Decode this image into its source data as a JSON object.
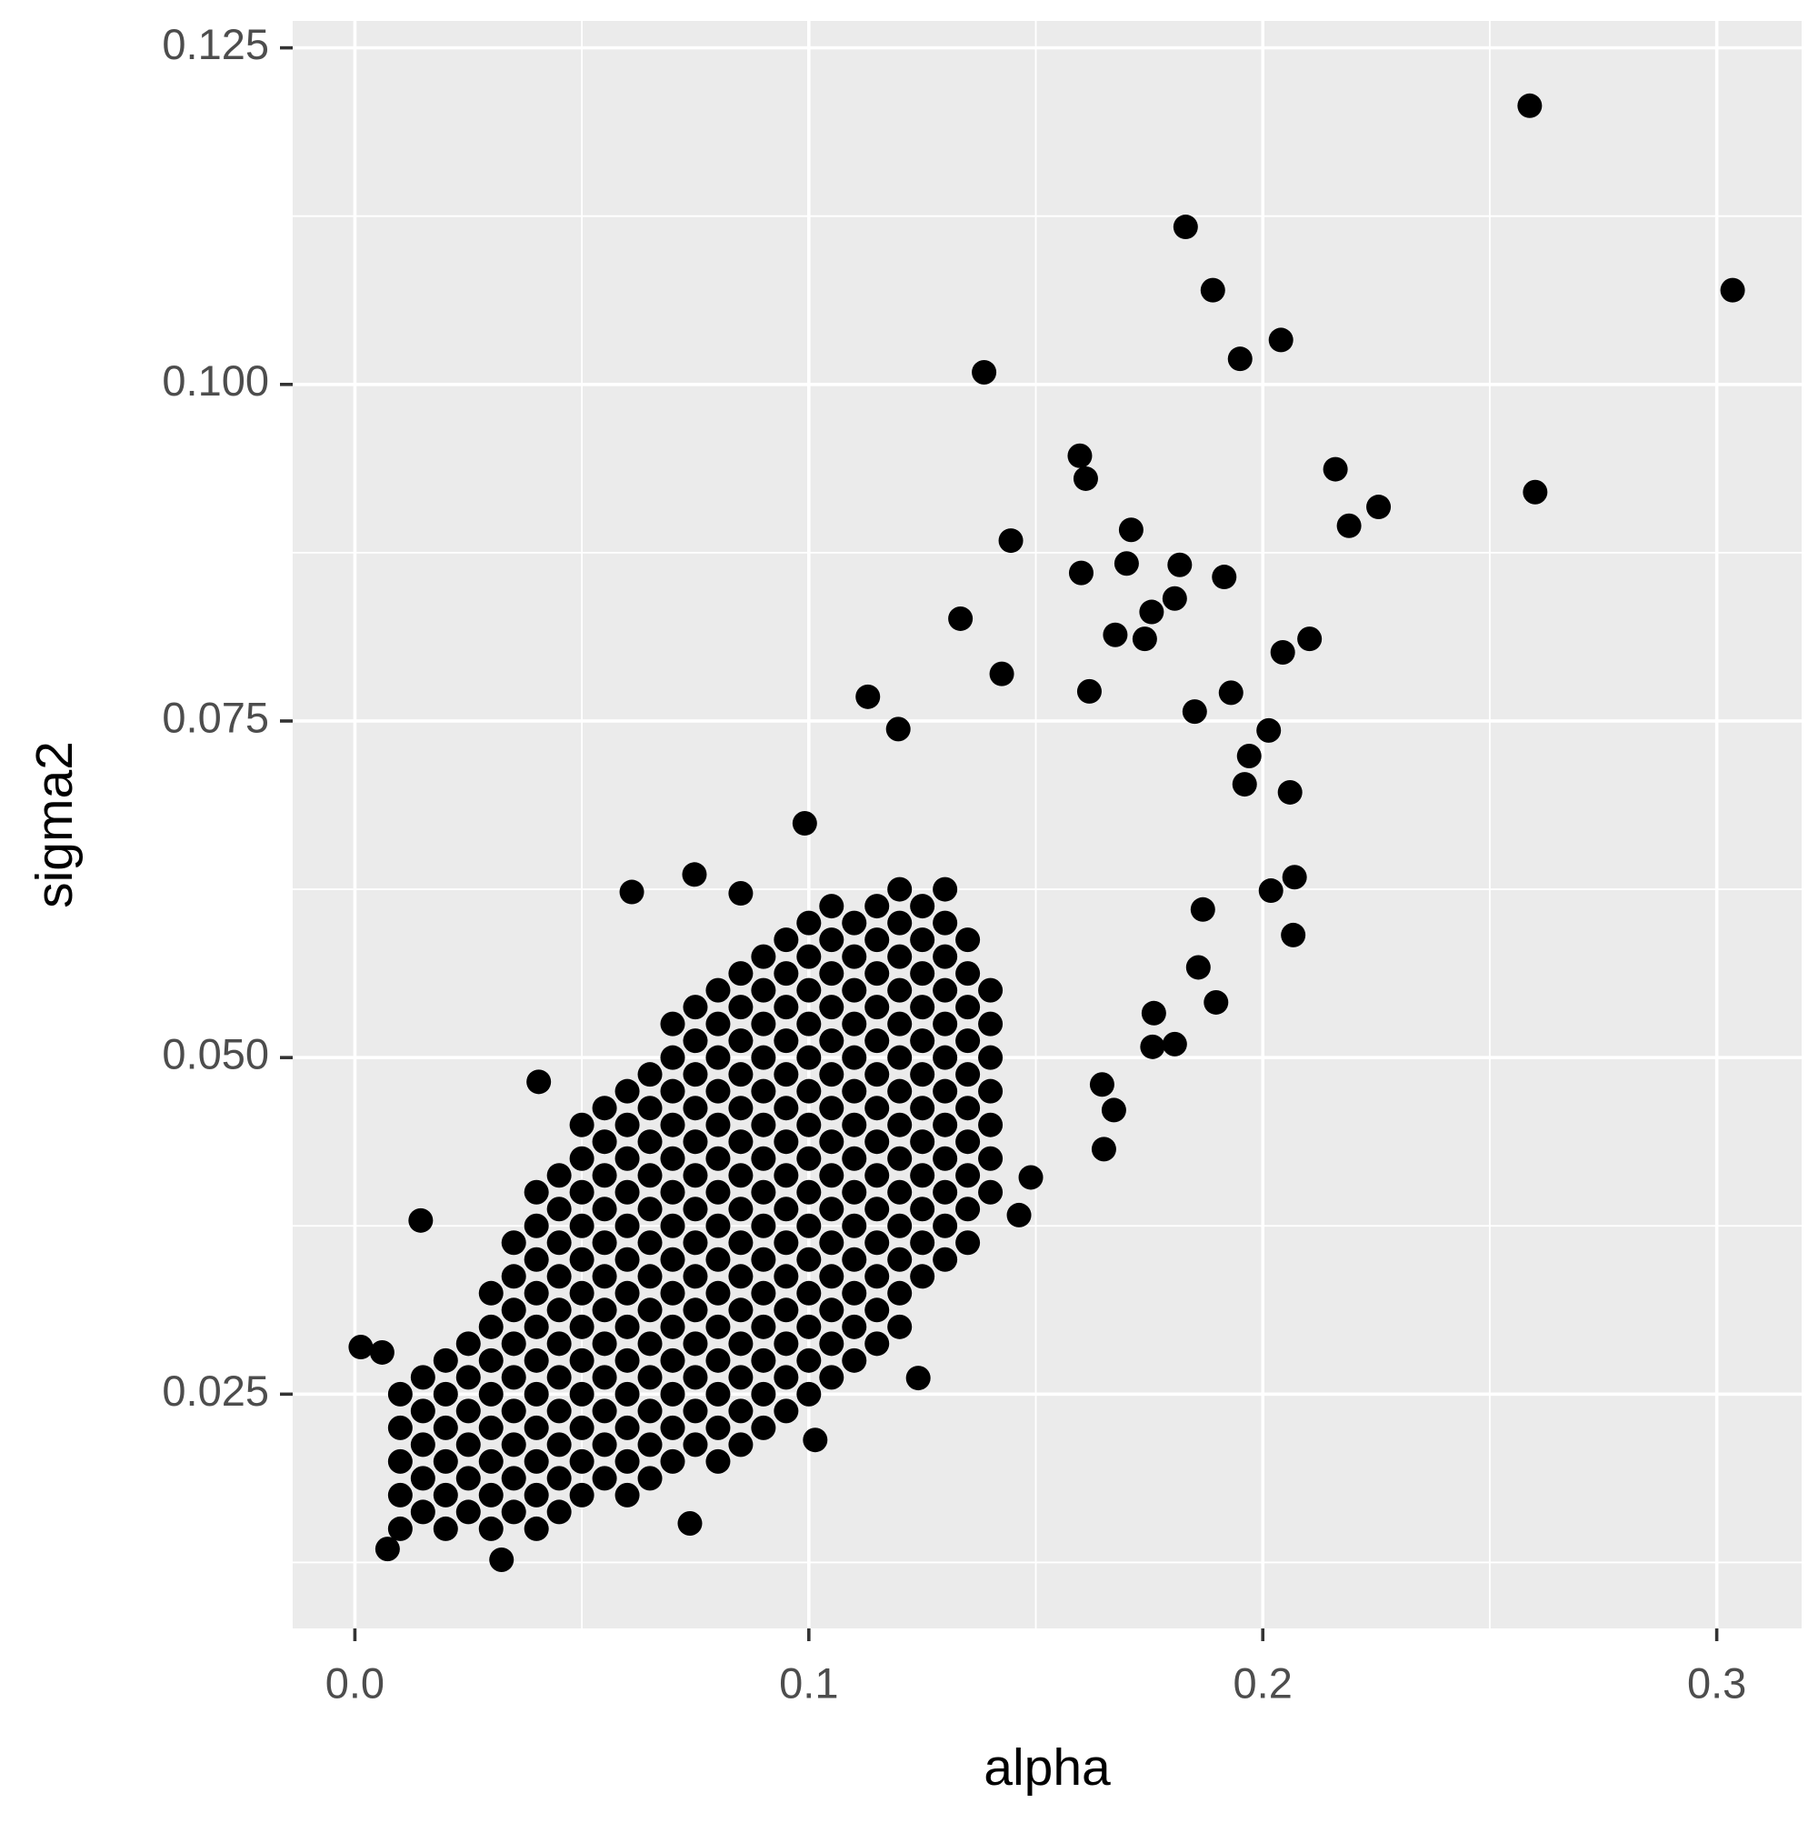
{
  "chart_data": {
    "type": "scatter",
    "x_label": "alpha",
    "y_label": "sigma2",
    "xlim": [
      -0.0137,
      0.3187
    ],
    "ylim": [
      0.0076,
      0.127
    ],
    "xticks": [
      {
        "value": 0,
        "label": "0.0"
      },
      0.1,
      0.2,
      0.3
    ],
    "yticks": [
      {
        "value": 0.025,
        "label": "0.025"
      },
      {
        "value": 0.05,
        "label": "0.050"
      },
      {
        "value": 0.075,
        "label": "0.075"
      },
      {
        "value": 0.1,
        "label": "0.100"
      },
      0.125
    ],
    "x_minor_grid": [
      0.05,
      0.15,
      0.25
    ],
    "y_minor_grid": [
      0.0125,
      0.0375,
      0.0625,
      0.0875,
      0.1125
    ],
    "grid": true,
    "panel_color": "#ebebeb",
    "grid_color": "#ffffff",
    "series": [
      {
        "color": "#000000",
        "x": [
          0.01,
          0.01,
          0.01,
          0.01,
          0.01,
          0.015,
          0.015,
          0.015,
          0.015,
          0.015,
          0.02,
          0.02,
          0.02,
          0.02,
          0.02,
          0.02,
          0.025,
          0.025,
          0.025,
          0.025,
          0.025,
          0.025,
          0.03,
          0.03,
          0.03,
          0.03,
          0.03,
          0.03,
          0.03,
          0.03,
          0.035,
          0.035,
          0.035,
          0.035,
          0.035,
          0.035,
          0.035,
          0.035,
          0.035,
          0.04,
          0.04,
          0.04,
          0.04,
          0.04,
          0.04,
          0.04,
          0.04,
          0.04,
          0.04,
          0.04,
          0.045,
          0.045,
          0.045,
          0.045,
          0.045,
          0.045,
          0.045,
          0.045,
          0.045,
          0.045,
          0.045,
          0.05,
          0.05,
          0.05,
          0.05,
          0.05,
          0.05,
          0.05,
          0.05,
          0.05,
          0.05,
          0.05,
          0.05,
          0.055,
          0.055,
          0.055,
          0.055,
          0.055,
          0.055,
          0.055,
          0.055,
          0.055,
          0.055,
          0.055,
          0.055,
          0.06,
          0.06,
          0.06,
          0.06,
          0.06,
          0.06,
          0.06,
          0.06,
          0.06,
          0.06,
          0.06,
          0.06,
          0.06,
          0.065,
          0.065,
          0.065,
          0.065,
          0.065,
          0.065,
          0.065,
          0.065,
          0.065,
          0.065,
          0.065,
          0.065,
          0.065,
          0.07,
          0.07,
          0.07,
          0.07,
          0.07,
          0.07,
          0.07,
          0.07,
          0.07,
          0.07,
          0.07,
          0.07,
          0.07,
          0.07,
          0.075,
          0.075,
          0.075,
          0.075,
          0.075,
          0.075,
          0.075,
          0.075,
          0.075,
          0.075,
          0.075,
          0.075,
          0.075,
          0.075,
          0.08,
          0.08,
          0.08,
          0.08,
          0.08,
          0.08,
          0.08,
          0.08,
          0.08,
          0.08,
          0.08,
          0.08,
          0.08,
          0.08,
          0.08,
          0.085,
          0.085,
          0.085,
          0.085,
          0.085,
          0.085,
          0.085,
          0.085,
          0.085,
          0.085,
          0.085,
          0.085,
          0.085,
          0.085,
          0.085,
          0.09,
          0.09,
          0.09,
          0.09,
          0.09,
          0.09,
          0.09,
          0.09,
          0.09,
          0.09,
          0.09,
          0.09,
          0.09,
          0.09,
          0.09,
          0.095,
          0.095,
          0.095,
          0.095,
          0.095,
          0.095,
          0.095,
          0.095,
          0.095,
          0.095,
          0.095,
          0.095,
          0.095,
          0.095,
          0.095,
          0.1,
          0.1,
          0.1,
          0.1,
          0.1,
          0.1,
          0.1,
          0.1,
          0.1,
          0.1,
          0.1,
          0.1,
          0.1,
          0.1,
          0.1,
          0.105,
          0.105,
          0.105,
          0.105,
          0.105,
          0.105,
          0.105,
          0.105,
          0.105,
          0.105,
          0.105,
          0.105,
          0.105,
          0.105,
          0.105,
          0.11,
          0.11,
          0.11,
          0.11,
          0.11,
          0.11,
          0.11,
          0.11,
          0.11,
          0.11,
          0.11,
          0.11,
          0.11,
          0.11,
          0.115,
          0.115,
          0.115,
          0.115,
          0.115,
          0.115,
          0.115,
          0.115,
          0.115,
          0.115,
          0.115,
          0.115,
          0.115,
          0.115,
          0.12,
          0.12,
          0.12,
          0.12,
          0.12,
          0.12,
          0.12,
          0.12,
          0.12,
          0.12,
          0.12,
          0.12,
          0.12,
          0.12,
          0.125,
          0.125,
          0.125,
          0.125,
          0.125,
          0.125,
          0.125,
          0.125,
          0.125,
          0.125,
          0.125,
          0.125,
          0.13,
          0.13,
          0.13,
          0.13,
          0.13,
          0.13,
          0.13,
          0.13,
          0.13,
          0.13,
          0.13,
          0.13,
          0.135,
          0.135,
          0.135,
          0.135,
          0.135,
          0.135,
          0.135,
          0.135,
          0.135,
          0.135,
          0.14,
          0.14,
          0.14,
          0.14,
          0.14,
          0.14,
          0.14,
          0.2588,
          0.183,
          0.189,
          0.3035,
          0.204,
          0.195,
          0.1386,
          0.1597,
          0.161,
          0.216,
          0.2255,
          0.219,
          0.26,
          0.171,
          0.1445,
          0.16,
          0.17,
          0.1817,
          0.1915,
          0.1806,
          0.1334,
          0.1755,
          0.1675,
          0.174,
          0.2103,
          0.2044,
          0.1425,
          0.1618,
          0.193,
          0.113,
          0.185,
          0.1197,
          0.2013,
          0.197,
          0.196,
          0.206,
          0.207,
          0.2018,
          0.2067,
          0.1868,
          0.1897,
          0.1858,
          0.176,
          0.1757,
          0.1806,
          0.165,
          0.1672,
          0.1646,
          0.061,
          0.0748,
          0.0991,
          0.0405,
          0.0145,
          0.0013,
          0.006,
          0.0072,
          0.0323,
          0.0738,
          0.1241,
          0.1014,
          0.1463,
          0.1489,
          0.085
        ],
        "values": [
          0.015,
          0.0175,
          0.02,
          0.0225,
          0.025,
          0.01625,
          0.01875,
          0.02125,
          0.02375,
          0.02625,
          0.015,
          0.0175,
          0.02,
          0.0225,
          0.025,
          0.0275,
          0.01625,
          0.01875,
          0.02125,
          0.02375,
          0.02625,
          0.02875,
          0.015,
          0.0175,
          0.02,
          0.0225,
          0.025,
          0.0275,
          0.03,
          0.0325,
          0.01625,
          0.01875,
          0.02125,
          0.02375,
          0.02625,
          0.02875,
          0.03125,
          0.03375,
          0.03625,
          0.015,
          0.0175,
          0.02,
          0.0225,
          0.025,
          0.0275,
          0.03,
          0.0325,
          0.035,
          0.0375,
          0.04,
          0.01625,
          0.01875,
          0.02125,
          0.02375,
          0.02625,
          0.02875,
          0.03125,
          0.03375,
          0.03625,
          0.03875,
          0.04125,
          0.0175,
          0.02,
          0.0225,
          0.025,
          0.0275,
          0.03,
          0.0325,
          0.035,
          0.0375,
          0.04,
          0.0425,
          0.045,
          0.01875,
          0.02125,
          0.02375,
          0.02625,
          0.02875,
          0.03125,
          0.03375,
          0.03625,
          0.03875,
          0.04125,
          0.04375,
          0.04625,
          0.0175,
          0.02,
          0.0225,
          0.025,
          0.0275,
          0.03,
          0.0325,
          0.035,
          0.0375,
          0.04,
          0.0425,
          0.045,
          0.0475,
          0.01875,
          0.02125,
          0.02375,
          0.02625,
          0.02875,
          0.03125,
          0.03375,
          0.03625,
          0.03875,
          0.04125,
          0.04375,
          0.04625,
          0.04875,
          0.02,
          0.0225,
          0.025,
          0.0275,
          0.03,
          0.0325,
          0.035,
          0.0375,
          0.04,
          0.0425,
          0.045,
          0.0475,
          0.05,
          0.0525,
          0.02125,
          0.02375,
          0.02625,
          0.02875,
          0.03125,
          0.03375,
          0.03625,
          0.03875,
          0.04125,
          0.04375,
          0.04625,
          0.04875,
          0.05125,
          0.05375,
          0.02,
          0.0225,
          0.025,
          0.0275,
          0.03,
          0.0325,
          0.035,
          0.0375,
          0.04,
          0.0425,
          0.045,
          0.0475,
          0.05,
          0.0525,
          0.055,
          0.02125,
          0.02375,
          0.02625,
          0.02875,
          0.03125,
          0.03375,
          0.03625,
          0.03875,
          0.04125,
          0.04375,
          0.04625,
          0.04875,
          0.05125,
          0.05375,
          0.05625,
          0.0225,
          0.025,
          0.0275,
          0.03,
          0.0325,
          0.035,
          0.0375,
          0.04,
          0.0425,
          0.045,
          0.0475,
          0.05,
          0.0525,
          0.055,
          0.0575,
          0.02375,
          0.02625,
          0.02875,
          0.03125,
          0.03375,
          0.03625,
          0.03875,
          0.04125,
          0.04375,
          0.04625,
          0.04875,
          0.05125,
          0.05375,
          0.05625,
          0.05875,
          0.025,
          0.0275,
          0.03,
          0.0325,
          0.035,
          0.0375,
          0.04,
          0.0425,
          0.045,
          0.0475,
          0.05,
          0.0525,
          0.055,
          0.0575,
          0.06,
          0.02625,
          0.02875,
          0.03125,
          0.03375,
          0.03625,
          0.03875,
          0.04125,
          0.04375,
          0.04625,
          0.04875,
          0.05125,
          0.05375,
          0.05625,
          0.05875,
          0.06125,
          0.0275,
          0.03,
          0.0325,
          0.035,
          0.0375,
          0.04,
          0.0425,
          0.045,
          0.0475,
          0.05,
          0.0525,
          0.055,
          0.0575,
          0.06,
          0.02875,
          0.03125,
          0.03375,
          0.03625,
          0.03875,
          0.04125,
          0.04375,
          0.04625,
          0.04875,
          0.05125,
          0.05375,
          0.05625,
          0.05875,
          0.06125,
          0.03,
          0.0325,
          0.035,
          0.0375,
          0.04,
          0.0425,
          0.045,
          0.0475,
          0.05,
          0.0525,
          0.055,
          0.0575,
          0.06,
          0.0625,
          0.03375,
          0.03625,
          0.03875,
          0.04125,
          0.04375,
          0.04625,
          0.04875,
          0.05125,
          0.05375,
          0.05625,
          0.05875,
          0.06125,
          0.035,
          0.0375,
          0.04,
          0.0425,
          0.045,
          0.0475,
          0.05,
          0.0525,
          0.055,
          0.0575,
          0.06,
          0.0625,
          0.03625,
          0.03875,
          0.04125,
          0.04375,
          0.04625,
          0.04875,
          0.05125,
          0.05375,
          0.05625,
          0.05875,
          0.04,
          0.0425,
          0.045,
          0.0475,
          0.05,
          0.0525,
          0.055,
          0.1207,
          0.1117,
          0.107,
          0.107,
          0.1033,
          0.1019,
          0.1009,
          0.0947,
          0.093,
          0.0937,
          0.0909,
          0.0895,
          0.092,
          0.0892,
          0.0884,
          0.086,
          0.0867,
          0.0866,
          0.0857,
          0.0841,
          0.0826,
          0.0831,
          0.0814,
          0.0811,
          0.0811,
          0.0801,
          0.0785,
          0.0772,
          0.0771,
          0.0768,
          0.0757,
          0.0744,
          0.0743,
          0.0724,
          0.0703,
          0.0697,
          0.0634,
          0.0624,
          0.0591,
          0.061,
          0.0541,
          0.0567,
          0.0533,
          0.0508,
          0.051,
          0.0432,
          0.0461,
          0.048,
          0.0623,
          0.0636,
          0.0674,
          0.0482,
          0.0379,
          0.0285,
          0.0281,
          0.0135,
          0.0127,
          0.0154,
          0.0262,
          0.0216,
          0.0383,
          0.0411,
          0.0622
        ]
      }
    ]
  }
}
